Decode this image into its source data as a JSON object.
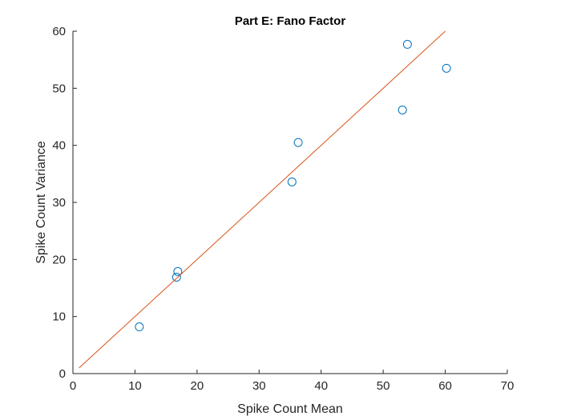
{
  "chart_data": {
    "type": "scatter",
    "title": "Part E: Fano Factor",
    "xlabel": "Spike Count Mean",
    "ylabel": "Spike Count Variance",
    "xlim": [
      0,
      70
    ],
    "ylim": [
      0,
      60
    ],
    "xticks": [
      "0",
      "10",
      "20",
      "30",
      "40",
      "50",
      "60",
      "70"
    ],
    "yticks": [
      "0",
      "10",
      "20",
      "30",
      "40",
      "50",
      "60"
    ],
    "grid": false,
    "series": [
      {
        "kind": "markers",
        "marker": "circle-open",
        "color": "#0072BD",
        "points": [
          {
            "x": 10.7,
            "y": 8.2
          },
          {
            "x": 16.7,
            "y": 16.9
          },
          {
            "x": 16.9,
            "y": 17.9
          },
          {
            "x": 35.3,
            "y": 33.6
          },
          {
            "x": 36.3,
            "y": 40.5
          },
          {
            "x": 53.1,
            "y": 46.2
          },
          {
            "x": 53.9,
            "y": 57.7
          },
          {
            "x": 60.2,
            "y": 53.5
          }
        ]
      },
      {
        "kind": "line",
        "color": "#D95319",
        "points": [
          {
            "x": 1,
            "y": 1
          },
          {
            "x": 60,
            "y": 60
          }
        ]
      }
    ]
  }
}
